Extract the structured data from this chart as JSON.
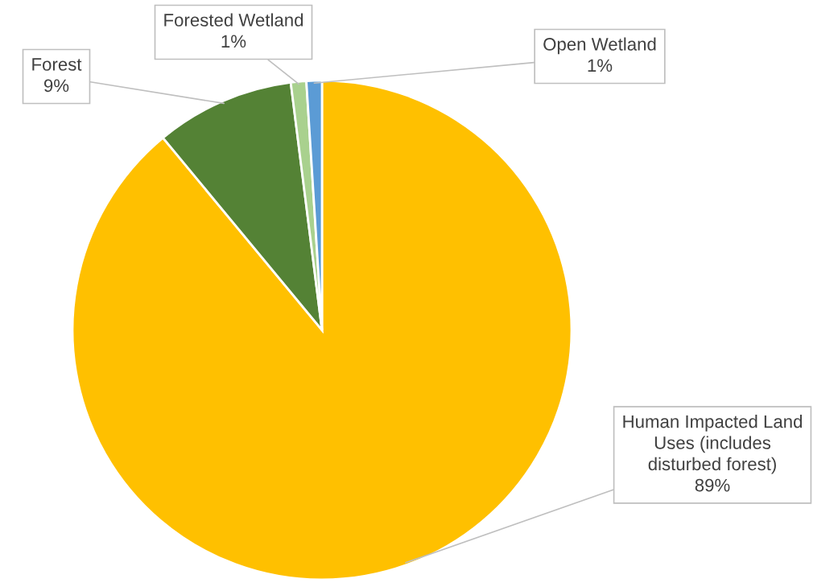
{
  "chart_data": {
    "type": "pie",
    "categories": [
      "Human Impacted Land\nUses (includes\ndisturbed forest)",
      "Forest",
      "Forested Wetland",
      "Open Wetland"
    ],
    "values": [
      89,
      9,
      1,
      1
    ],
    "value_labels": [
      "89%",
      "9%",
      "1%",
      "1%"
    ],
    "colors": [
      "#ffc000",
      "#548235",
      "#a9d18e",
      "#5b9bd5"
    ],
    "legend": false
  }
}
